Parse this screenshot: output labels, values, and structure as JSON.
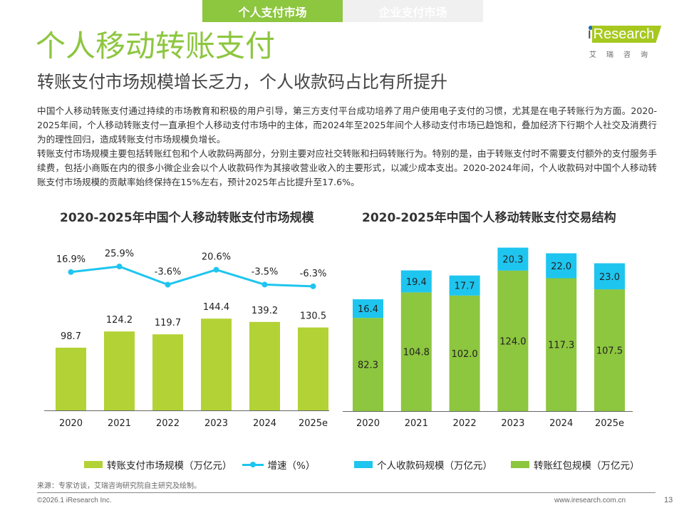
{
  "tabs": [
    {
      "label": "个人支付市场",
      "active": true
    },
    {
      "label": "企业支付市场",
      "active": false
    }
  ],
  "logo": {
    "brand_i": "i",
    "brand_rest": "Research",
    "sub": "艾瑞咨询"
  },
  "header": {
    "title": "个人移动转账支付",
    "subtitle": "转账支付市场规模增长乏力，个人收款码占比有所提升"
  },
  "body": {
    "paragraphs": [
      "中国个人移动转账支付通过持续的市场教育和积极的用户引导，第三方支付平台成功培养了用户使用电子支付的习惯，尤其是在电子转账行为方面。2020-2025年间，个人移动转账支付一直承担个人移动支付市场中的主体，而2024年至2025年间个人移动支付市场已趋饱和，叠加经济下行期个人社交及消费行为的理性回归，造成转账支付市场规模负增长。",
      "转账支付市场规模主要包括转账红包和个人收款码两部分，分别主要对应社交转账和扫码转账行为。特别的是，由于转账支付时不需要支付额外的支付服务手续费，包括小商贩在内的很多小微企业会以个人收款码作为其接收营业收入的主要形式，以减少成本支出。2020-2024年间，个人收款码对中国个人移动转账支付市场规模的贡献率始终保持在15%左右，预计2025年占比提升至17.6%。"
    ]
  },
  "chart_data": [
    {
      "type": "bar",
      "title": "2020-2025年中国个人移动转账支付市场规模",
      "categories": [
        "2020",
        "2021",
        "2022",
        "2023",
        "2024",
        "2025e"
      ],
      "series": [
        {
          "name": "转账支付市场规模（万亿元）",
          "type": "bar",
          "color": "#b3d235",
          "values": [
            98.7,
            124.2,
            119.7,
            144.4,
            139.2,
            130.5
          ],
          "labels": [
            "98.7",
            "124.2",
            "119.7",
            "144.4",
            "139.2",
            "130.5"
          ]
        },
        {
          "name": "增速（%）",
          "type": "line",
          "color": "#1ec5ef",
          "values": [
            16.9,
            25.9,
            -3.6,
            20.6,
            -3.5,
            -6.3
          ],
          "labels": [
            "16.9%",
            "25.9%",
            "-3.6%",
            "20.6%",
            "-3.5%",
            "-6.3%"
          ]
        }
      ],
      "xlabel": "",
      "ylabel": "",
      "ylim": [
        0,
        160
      ],
      "grid": false,
      "legend": "bottom"
    },
    {
      "type": "bar",
      "stacked": true,
      "title": "2020-2025年中国个人移动转账支付交易结构",
      "categories": [
        "2020",
        "2021",
        "2022",
        "2023",
        "2024",
        "2025e"
      ],
      "series": [
        {
          "name": "转账红包规模（万亿元）",
          "color": "#8dc63f",
          "values": [
            82.3,
            104.8,
            102.0,
            124.0,
            117.3,
            107.5
          ],
          "labels": [
            "82.3",
            "104.8",
            "102.0",
            "124.0",
            "117.3",
            "107.5"
          ]
        },
        {
          "name": "个人收款码规模（万亿元）",
          "color": "#1ec5ef",
          "values": [
            16.4,
            19.4,
            17.7,
            20.3,
            22.0,
            23.0
          ],
          "labels": [
            "16.4",
            "19.4",
            "17.7",
            "20.3",
            "22.0",
            "23.0"
          ]
        }
      ],
      "legend_order": [
        "个人收款码规模（万亿元）",
        "转账红包规模（万亿元）"
      ],
      "xlabel": "",
      "ylabel": "",
      "ylim": [
        0,
        150
      ],
      "grid": false,
      "legend": "bottom"
    }
  ],
  "footer": {
    "source": "来源：专家访谈，艾瑞咨询研究院自主研究及绘制。",
    "copyright": "©2026.1 iResearch Inc.",
    "website": "www.iresearch.com.cn",
    "page": "13"
  }
}
